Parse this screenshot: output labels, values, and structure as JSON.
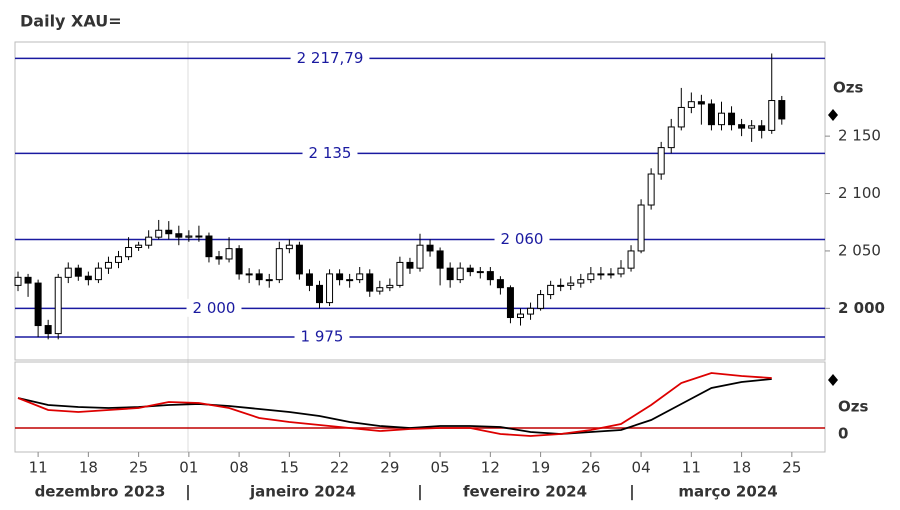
{
  "chart_data": [
    {
      "type": "candlestick",
      "title": "Daily XAU=",
      "unit_label": "Ozs",
      "x": [
        0,
        1,
        2,
        3,
        4,
        5,
        6,
        7,
        8,
        9,
        10,
        11,
        12,
        13,
        14,
        15,
        16,
        17,
        18,
        19,
        20,
        21,
        22,
        23,
        24,
        25,
        26,
        27,
        28,
        29,
        30,
        31,
        32,
        33,
        34,
        35,
        36,
        37,
        38,
        39,
        40,
        41,
        42,
        43,
        44,
        45,
        46,
        47,
        48,
        49,
        50,
        51,
        52,
        53,
        54,
        55,
        56,
        57,
        58,
        59,
        60,
        61,
        62,
        63,
        64,
        65,
        66,
        67,
        68,
        69,
        70,
        71,
        72,
        73,
        74,
        75,
        76
      ],
      "open": [
        2020,
        2027,
        2022,
        1985,
        1978,
        2027,
        2035,
        2028,
        2025,
        2035,
        2040,
        2045,
        2053,
        2055,
        2062,
        2068,
        2065,
        2062,
        2063,
        2063,
        2045,
        2043,
        2052,
        2030,
        2030,
        2025,
        2025,
        2052,
        2055,
        2030,
        2020,
        2005,
        2030,
        2025,
        2025,
        2030,
        2015,
        2018,
        2020,
        2040,
        2035,
        2055,
        2050,
        2035,
        2025,
        2035,
        2032,
        2032,
        2025,
        2018,
        1992,
        1995,
        2000,
        2012,
        2020,
        2020,
        2022,
        2025,
        2030,
        2030,
        2030,
        2035,
        2050,
        2090,
        2117,
        2140,
        2158,
        2175,
        2180,
        2178,
        2160,
        2170,
        2160,
        2157,
        2159,
        2155,
        2181
      ],
      "high": [
        2032,
        2030,
        2025,
        1990,
        2030,
        2040,
        2038,
        2032,
        2040,
        2045,
        2050,
        2062,
        2058,
        2068,
        2077,
        2076,
        2072,
        2068,
        2072,
        2066,
        2050,
        2062,
        2055,
        2035,
        2034,
        2030,
        2058,
        2060,
        2058,
        2034,
        2024,
        2034,
        2034,
        2030,
        2036,
        2034,
        2024,
        2026,
        2045,
        2044,
        2065,
        2060,
        2053,
        2040,
        2040,
        2038,
        2036,
        2036,
        2028,
        2020,
        2000,
        2005,
        2016,
        2024,
        2026,
        2028,
        2030,
        2036,
        2036,
        2035,
        2042,
        2055,
        2095,
        2122,
        2145,
        2165,
        2192,
        2188,
        2186,
        2182,
        2180,
        2176,
        2165,
        2164,
        2164,
        2222,
        2185
      ],
      "low": [
        2015,
        2010,
        1975,
        1973,
        1973,
        2022,
        2024,
        2020,
        2022,
        2030,
        2035,
        2042,
        2050,
        2052,
        2060,
        2060,
        2055,
        2058,
        2058,
        2040,
        2038,
        2040,
        2025,
        2022,
        2020,
        2018,
        2022,
        2048,
        2025,
        2015,
        2000,
        2002,
        2020,
        2018,
        2022,
        2010,
        2012,
        2015,
        2018,
        2030,
        2032,
        2045,
        2020,
        2018,
        2022,
        2028,
        2026,
        2020,
        2012,
        1987,
        1985,
        1990,
        1998,
        2008,
        2015,
        2016,
        2018,
        2022,
        2025,
        2026,
        2027,
        2032,
        2048,
        2086,
        2112,
        2135,
        2155,
        2170,
        2160,
        2155,
        2155,
        2155,
        2150,
        2145,
        2148,
        2152,
        2160
      ],
      "close": [
        2027,
        2022,
        1985,
        1978,
        2027,
        2035,
        2028,
        2025,
        2035,
        2040,
        2045,
        2053,
        2055,
        2062,
        2068,
        2065,
        2062,
        2063,
        2063,
        2045,
        2043,
        2052,
        2030,
        2030,
        2025,
        2025,
        2052,
        2055,
        2030,
        2020,
        2005,
        2030,
        2025,
        2025,
        2030,
        2015,
        2018,
        2020,
        2040,
        2035,
        2055,
        2050,
        2035,
        2025,
        2035,
        2032,
        2032,
        2025,
        2018,
        1992,
        1995,
        2000,
        2012,
        2020,
        2020,
        2022,
        2025,
        2030,
        2030,
        2030,
        2035,
        2050,
        2090,
        2117,
        2140,
        2158,
        2175,
        2180,
        2178,
        2160,
        2170,
        2160,
        2157,
        2159,
        2155,
        2181,
        2165
      ],
      "levels": [
        {
          "value": 2217.79,
          "label": "2 217,79"
        },
        {
          "value": 2135,
          "label": "2 135"
        },
        {
          "value": 2060,
          "label": "2 060"
        },
        {
          "value": 2000,
          "label": "2 000"
        },
        {
          "value": 1975,
          "label": "1 975"
        }
      ],
      "xlim": [
        -0.3,
        80.3
      ],
      "ylim": [
        1955,
        2232
      ],
      "yticks": [
        {
          "value": 2150,
          "label": "2 150"
        },
        {
          "value": 2100,
          "label": "2 100"
        },
        {
          "value": 2050,
          "label": "2 050"
        },
        {
          "value": 2000,
          "label": "2 000"
        }
      ]
    },
    {
      "type": "line",
      "unit_label": "Ozs",
      "x": [
        0,
        3,
        6,
        9,
        12,
        15,
        18,
        21,
        24,
        27,
        30,
        33,
        36,
        39,
        42,
        45,
        48,
        51,
        54,
        57,
        60,
        63,
        66,
        69,
        72,
        75
      ],
      "series": [
        {
          "color": "#000000",
          "values": [
            30,
            23,
            21,
            20,
            21,
            23,
            24,
            22,
            19,
            16,
            12,
            6,
            2,
            0,
            2,
            2,
            1,
            -4,
            -6,
            -4,
            -2,
            8,
            24,
            40,
            46,
            49
          ]
        },
        {
          "color": "#dd0000",
          "values": [
            30,
            18,
            16,
            18,
            20,
            26,
            25,
            20,
            10,
            6,
            3,
            0,
            -3,
            -1,
            0,
            0,
            -6,
            -8,
            -6,
            -2,
            4,
            23,
            45,
            55,
            52,
            50
          ]
        }
      ],
      "xlim": [
        -0.3,
        80.3
      ],
      "ylim": [
        -24,
        66
      ],
      "yticks": [
        0
      ],
      "xticks": [
        {
          "value": 2,
          "label": "11"
        },
        {
          "value": 7,
          "label": "18"
        },
        {
          "value": 12,
          "label": "25"
        },
        {
          "value": 17,
          "label": "01"
        },
        {
          "value": 22,
          "label": "08"
        },
        {
          "value": 27,
          "label": "15"
        },
        {
          "value": 32,
          "label": "22"
        },
        {
          "value": 37,
          "label": "29"
        },
        {
          "value": 42,
          "label": "05"
        },
        {
          "value": 47,
          "label": "12"
        },
        {
          "value": 52,
          "label": "19"
        },
        {
          "value": 57,
          "label": "26"
        },
        {
          "value": 62,
          "label": "04"
        },
        {
          "value": 67,
          "label": "11"
        },
        {
          "value": 72,
          "label": "18"
        },
        {
          "value": 77,
          "label": "25"
        }
      ],
      "month_labels": [
        "dezembro 2023",
        "janeiro 2024",
        "fevereiro 2024",
        "março 2024"
      ]
    }
  ]
}
